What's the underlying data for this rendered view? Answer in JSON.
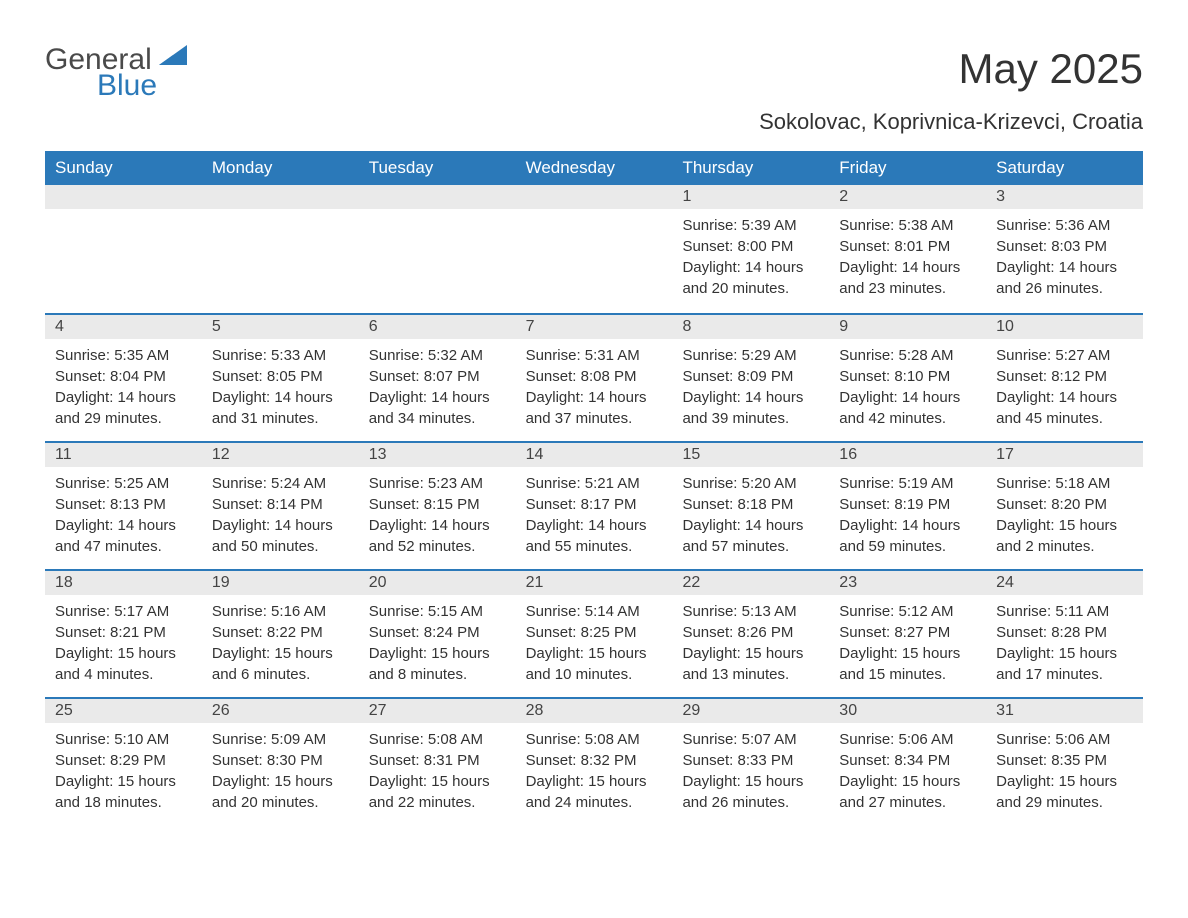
{
  "logo": {
    "text1": "General",
    "text2": "Blue",
    "triangle_color": "#2b79b9"
  },
  "title": "May 2025",
  "subtitle": "Sokolovac, Koprivnica-Krizevci, Croatia",
  "colors": {
    "header_bg": "#2b79b9",
    "header_text": "#ffffff",
    "day_bar_bg": "#eaeaea",
    "day_bar_border": "#2b79b9",
    "body_text": "#333333"
  },
  "weekdays": [
    "Sunday",
    "Monday",
    "Tuesday",
    "Wednesday",
    "Thursday",
    "Friday",
    "Saturday"
  ],
  "weeks": [
    [
      {
        "day": "",
        "sunrise": "",
        "sunset": "",
        "daylight": ""
      },
      {
        "day": "",
        "sunrise": "",
        "sunset": "",
        "daylight": ""
      },
      {
        "day": "",
        "sunrise": "",
        "sunset": "",
        "daylight": ""
      },
      {
        "day": "",
        "sunrise": "",
        "sunset": "",
        "daylight": ""
      },
      {
        "day": "1",
        "sunrise": "Sunrise: 5:39 AM",
        "sunset": "Sunset: 8:00 PM",
        "daylight": "Daylight: 14 hours and 20 minutes."
      },
      {
        "day": "2",
        "sunrise": "Sunrise: 5:38 AM",
        "sunset": "Sunset: 8:01 PM",
        "daylight": "Daylight: 14 hours and 23 minutes."
      },
      {
        "day": "3",
        "sunrise": "Sunrise: 5:36 AM",
        "sunset": "Sunset: 8:03 PM",
        "daylight": "Daylight: 14 hours and 26 minutes."
      }
    ],
    [
      {
        "day": "4",
        "sunrise": "Sunrise: 5:35 AM",
        "sunset": "Sunset: 8:04 PM",
        "daylight": "Daylight: 14 hours and 29 minutes."
      },
      {
        "day": "5",
        "sunrise": "Sunrise: 5:33 AM",
        "sunset": "Sunset: 8:05 PM",
        "daylight": "Daylight: 14 hours and 31 minutes."
      },
      {
        "day": "6",
        "sunrise": "Sunrise: 5:32 AM",
        "sunset": "Sunset: 8:07 PM",
        "daylight": "Daylight: 14 hours and 34 minutes."
      },
      {
        "day": "7",
        "sunrise": "Sunrise: 5:31 AM",
        "sunset": "Sunset: 8:08 PM",
        "daylight": "Daylight: 14 hours and 37 minutes."
      },
      {
        "day": "8",
        "sunrise": "Sunrise: 5:29 AM",
        "sunset": "Sunset: 8:09 PM",
        "daylight": "Daylight: 14 hours and 39 minutes."
      },
      {
        "day": "9",
        "sunrise": "Sunrise: 5:28 AM",
        "sunset": "Sunset: 8:10 PM",
        "daylight": "Daylight: 14 hours and 42 minutes."
      },
      {
        "day": "10",
        "sunrise": "Sunrise: 5:27 AM",
        "sunset": "Sunset: 8:12 PM",
        "daylight": "Daylight: 14 hours and 45 minutes."
      }
    ],
    [
      {
        "day": "11",
        "sunrise": "Sunrise: 5:25 AM",
        "sunset": "Sunset: 8:13 PM",
        "daylight": "Daylight: 14 hours and 47 minutes."
      },
      {
        "day": "12",
        "sunrise": "Sunrise: 5:24 AM",
        "sunset": "Sunset: 8:14 PM",
        "daylight": "Daylight: 14 hours and 50 minutes."
      },
      {
        "day": "13",
        "sunrise": "Sunrise: 5:23 AM",
        "sunset": "Sunset: 8:15 PM",
        "daylight": "Daylight: 14 hours and 52 minutes."
      },
      {
        "day": "14",
        "sunrise": "Sunrise: 5:21 AM",
        "sunset": "Sunset: 8:17 PM",
        "daylight": "Daylight: 14 hours and 55 minutes."
      },
      {
        "day": "15",
        "sunrise": "Sunrise: 5:20 AM",
        "sunset": "Sunset: 8:18 PM",
        "daylight": "Daylight: 14 hours and 57 minutes."
      },
      {
        "day": "16",
        "sunrise": "Sunrise: 5:19 AM",
        "sunset": "Sunset: 8:19 PM",
        "daylight": "Daylight: 14 hours and 59 minutes."
      },
      {
        "day": "17",
        "sunrise": "Sunrise: 5:18 AM",
        "sunset": "Sunset: 8:20 PM",
        "daylight": "Daylight: 15 hours and 2 minutes."
      }
    ],
    [
      {
        "day": "18",
        "sunrise": "Sunrise: 5:17 AM",
        "sunset": "Sunset: 8:21 PM",
        "daylight": "Daylight: 15 hours and 4 minutes."
      },
      {
        "day": "19",
        "sunrise": "Sunrise: 5:16 AM",
        "sunset": "Sunset: 8:22 PM",
        "daylight": "Daylight: 15 hours and 6 minutes."
      },
      {
        "day": "20",
        "sunrise": "Sunrise: 5:15 AM",
        "sunset": "Sunset: 8:24 PM",
        "daylight": "Daylight: 15 hours and 8 minutes."
      },
      {
        "day": "21",
        "sunrise": "Sunrise: 5:14 AM",
        "sunset": "Sunset: 8:25 PM",
        "daylight": "Daylight: 15 hours and 10 minutes."
      },
      {
        "day": "22",
        "sunrise": "Sunrise: 5:13 AM",
        "sunset": "Sunset: 8:26 PM",
        "daylight": "Daylight: 15 hours and 13 minutes."
      },
      {
        "day": "23",
        "sunrise": "Sunrise: 5:12 AM",
        "sunset": "Sunset: 8:27 PM",
        "daylight": "Daylight: 15 hours and 15 minutes."
      },
      {
        "day": "24",
        "sunrise": "Sunrise: 5:11 AM",
        "sunset": "Sunset: 8:28 PM",
        "daylight": "Daylight: 15 hours and 17 minutes."
      }
    ],
    [
      {
        "day": "25",
        "sunrise": "Sunrise: 5:10 AM",
        "sunset": "Sunset: 8:29 PM",
        "daylight": "Daylight: 15 hours and 18 minutes."
      },
      {
        "day": "26",
        "sunrise": "Sunrise: 5:09 AM",
        "sunset": "Sunset: 8:30 PM",
        "daylight": "Daylight: 15 hours and 20 minutes."
      },
      {
        "day": "27",
        "sunrise": "Sunrise: 5:08 AM",
        "sunset": "Sunset: 8:31 PM",
        "daylight": "Daylight: 15 hours and 22 minutes."
      },
      {
        "day": "28",
        "sunrise": "Sunrise: 5:08 AM",
        "sunset": "Sunset: 8:32 PM",
        "daylight": "Daylight: 15 hours and 24 minutes."
      },
      {
        "day": "29",
        "sunrise": "Sunrise: 5:07 AM",
        "sunset": "Sunset: 8:33 PM",
        "daylight": "Daylight: 15 hours and 26 minutes."
      },
      {
        "day": "30",
        "sunrise": "Sunrise: 5:06 AM",
        "sunset": "Sunset: 8:34 PM",
        "daylight": "Daylight: 15 hours and 27 minutes."
      },
      {
        "day": "31",
        "sunrise": "Sunrise: 5:06 AM",
        "sunset": "Sunset: 8:35 PM",
        "daylight": "Daylight: 15 hours and 29 minutes."
      }
    ]
  ]
}
